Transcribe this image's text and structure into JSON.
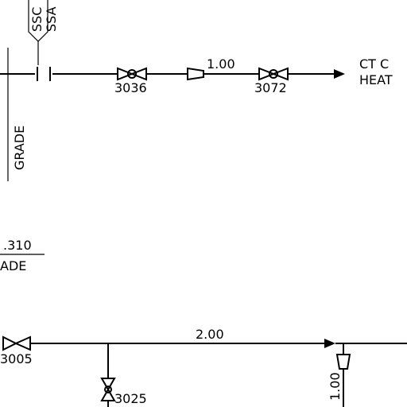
{
  "tags": {
    "valve_3036": "3036",
    "valve_3072": "3072",
    "valve_3005": "3005",
    "valve_3025": "3025"
  },
  "line_sizes": {
    "upper": "1.00",
    "lower": "2.00",
    "vertical": "1.00"
  },
  "destination": {
    "line1": "CT  C",
    "line2": "HEAT"
  },
  "left_labels": {
    "grade": "GRADE",
    "elevation": ".310",
    "elevation_ref": "ADE"
  },
  "top_labels": {
    "a": "SSC",
    "b": "SSA"
  }
}
